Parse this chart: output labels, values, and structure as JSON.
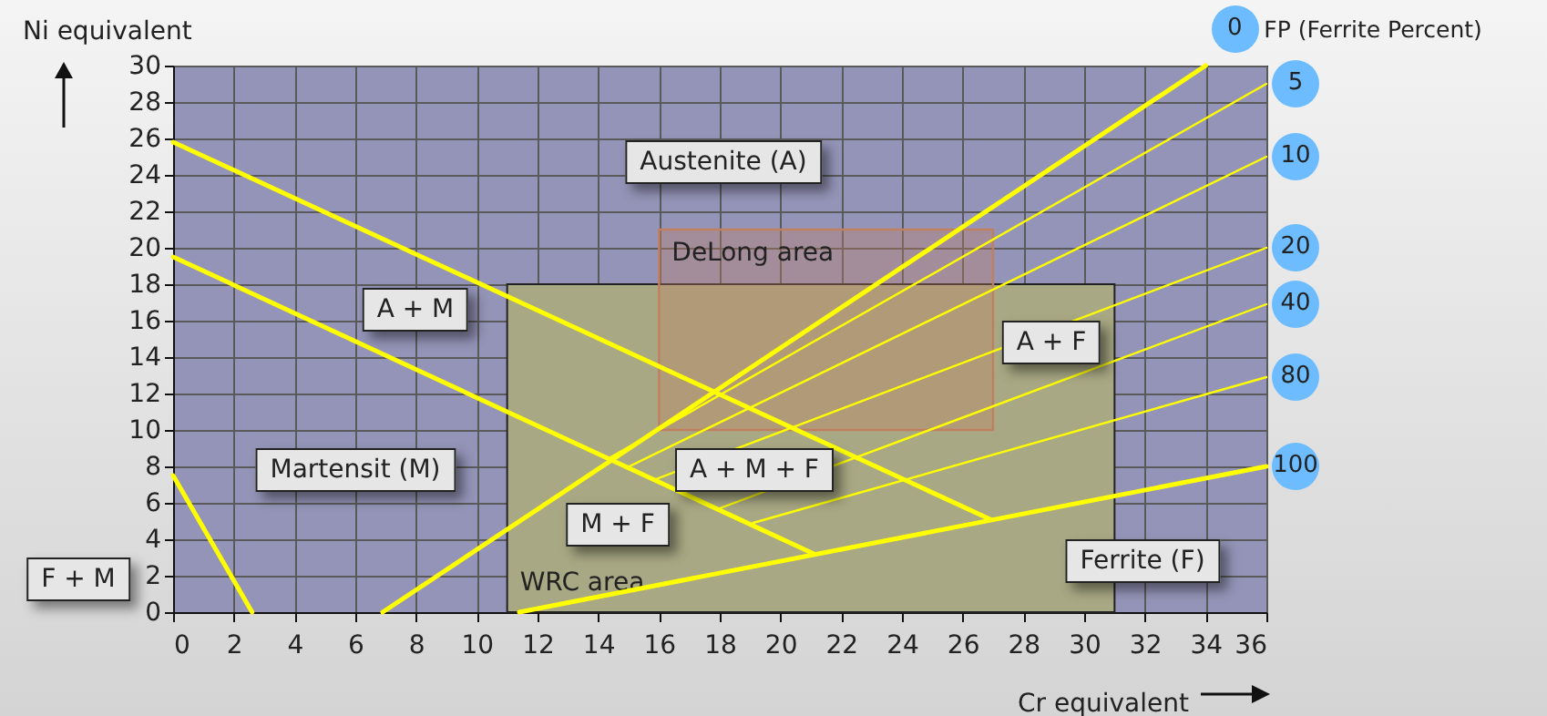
{
  "chart_data": {
    "type": "line",
    "xlabel": "Cr equivalent",
    "ylabel": "Ni equivalent",
    "legend_title": "FP (Ferrite Percent)",
    "xlim": [
      0,
      36
    ],
    "ylim": [
      0,
      30
    ],
    "xticks": [
      0,
      2,
      4,
      6,
      8,
      10,
      12,
      14,
      16,
      18,
      20,
      22,
      24,
      26,
      28,
      30,
      32,
      34,
      36
    ],
    "yticks": [
      0,
      2,
      4,
      6,
      8,
      10,
      12,
      14,
      16,
      18,
      20,
      22,
      24,
      26,
      28,
      30
    ],
    "grid": true,
    "series": [
      {
        "type": "area",
        "name": "WRC area",
        "color": "#a8a884",
        "x": [
          11,
          31
        ],
        "values": [
          18,
          18
        ]
      },
      {
        "type": "area",
        "name": "DeLong area",
        "color": "#c08060",
        "x": [
          16,
          27,
          27,
          16,
          16
        ],
        "values": [
          10,
          10,
          21,
          21,
          10
        ]
      },
      {
        "color": "#ffff00",
        "x": [
          0,
          26.9
        ],
        "values": [
          25.8,
          5.1
        ]
      },
      {
        "color": "#ffff00",
        "x": [
          0,
          21.1
        ],
        "values": [
          19.5,
          3.2
        ]
      },
      {
        "color": "#ffff00",
        "x": [
          0,
          2.6
        ],
        "values": [
          7.5,
          0
        ]
      },
      {
        "name": "0",
        "color": "#ffff00",
        "x": [
          6.9,
          34
        ],
        "values": [
          0,
          30
        ]
      },
      {
        "name": "5",
        "color": "#ffff00",
        "x": [
          14.3,
          36
        ],
        "values": [
          8.4,
          29
        ]
      },
      {
        "name": "10",
        "color": "#ffff00",
        "x": [
          14.9,
          36
        ],
        "values": [
          7.9,
          25
        ]
      },
      {
        "name": "20",
        "color": "#ffff00",
        "x": [
          15.9,
          36
        ],
        "values": [
          7.3,
          20
        ]
      },
      {
        "name": "40",
        "color": "#ffff00",
        "x": [
          18,
          36
        ],
        "values": [
          5.7,
          16.9
        ]
      },
      {
        "name": "80",
        "color": "#ffff00",
        "x": [
          19.1,
          36
        ],
        "values": [
          4.9,
          12.9
        ]
      },
      {
        "name": "100",
        "color": "#ffff00",
        "x": [
          11.4,
          36
        ],
        "values": [
          0,
          8
        ]
      }
    ],
    "annotations": [
      "Austenite (A)",
      "A + M",
      "Martensit (M)",
      "F + M",
      "M + F",
      "A + M + F",
      "A + F",
      "Ferrite (F)"
    ]
  }
}
